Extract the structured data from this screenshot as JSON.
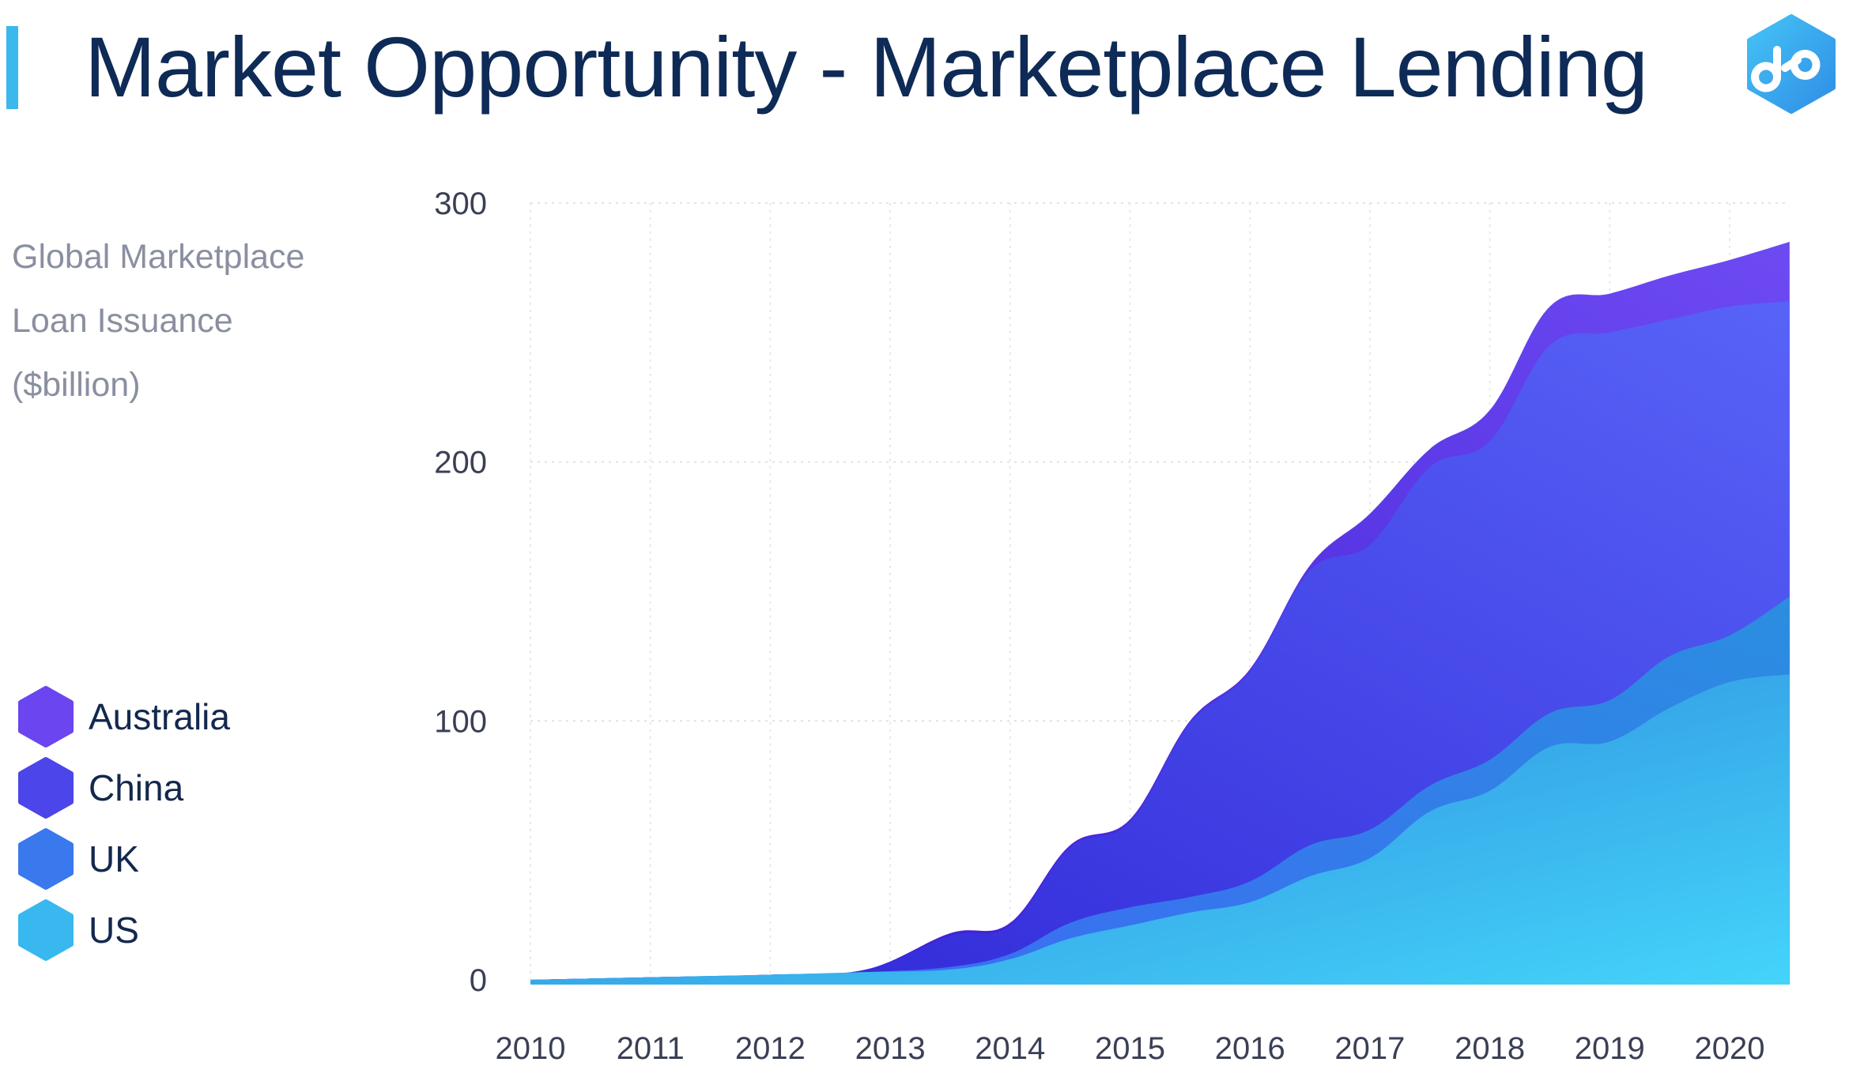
{
  "header": {
    "title": "Market Opportunity - Marketplace Lending",
    "logo_icon": "chain-link-hexagon-icon"
  },
  "axis_title_lines": [
    "Global Marketplace",
    "Loan Issuance",
    "($billion)"
  ],
  "colors": {
    "accent": "#3bb8ec",
    "title": "#0e2a56",
    "australia": "#6a45f0",
    "china": "#3f3ae0",
    "uk": "#3d6ef5",
    "us": "#35b5ec"
  },
  "chart_data": {
    "type": "area",
    "stacked": true,
    "title": "Global Marketplace Loan Issuance ($billion)",
    "xlabel": "",
    "ylabel": "Global Marketplace Loan Issuance ($billion)",
    "ylim": [
      0,
      300
    ],
    "xlim": [
      2010,
      2020.5
    ],
    "y_ticks": [
      "0",
      "100",
      "200",
      "300"
    ],
    "x_ticks": [
      "2010",
      "2011",
      "2012",
      "2013",
      "2014",
      "2015",
      "2016",
      "2017",
      "2018",
      "2019",
      "2020"
    ],
    "grid": true,
    "legend_position": "left",
    "x": [
      2010,
      2011,
      2012,
      2012.8,
      2013.5,
      2014,
      2014.5,
      2015,
      2015.5,
      2016,
      2016.5,
      2017,
      2017.5,
      2018,
      2018.5,
      2019,
      2019.5,
      2020,
      2020.5
    ],
    "series": [
      {
        "name": "US",
        "values": [
          0,
          1,
          2,
          3,
          4,
          8,
          16,
          21,
          26,
          30,
          40,
          47,
          65,
          73,
          90,
          92,
          105,
          115,
          118
        ]
      },
      {
        "name": "UK",
        "values": [
          0,
          0,
          0,
          0,
          1,
          2,
          6,
          7,
          6,
          8,
          12,
          11,
          10,
          12,
          13,
          16,
          20,
          18,
          30
        ]
      },
      {
        "name": "China",
        "values": [
          0,
          0,
          0,
          1,
          12,
          11,
          29,
          33,
          67,
          81,
          106,
          110,
          123,
          123,
          142,
          142,
          130,
          127,
          114
        ]
      },
      {
        "name": "Australia",
        "values": [
          0,
          0,
          0,
          0,
          1,
          1,
          1,
          1,
          1,
          1,
          2,
          12,
          7,
          12,
          15,
          15,
          17,
          18,
          23
        ]
      }
    ],
    "legend": [
      "Australia",
      "China",
      "UK",
      "US"
    ]
  }
}
